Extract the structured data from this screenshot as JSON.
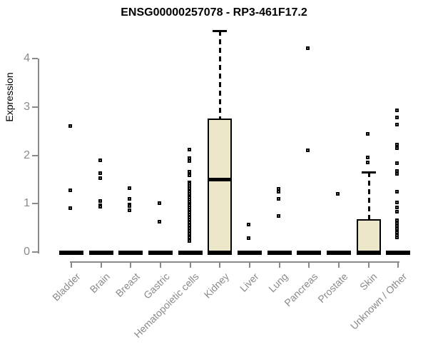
{
  "colors": {
    "box_fill": "#ece7c8",
    "mark": "#000000",
    "axis": "#8a8a8a",
    "axis_text": "#8a8a8a",
    "title_text": "#000000",
    "background": "#ffffff"
  },
  "chart_data": {
    "type": "boxplot",
    "title": "ENSG00000257078 - RP3-461F17.2",
    "xlabel": "",
    "ylabel": "Expression",
    "ylim": [
      0,
      4.65
    ],
    "yticks": [
      0,
      1,
      2,
      3,
      4
    ],
    "grid": false,
    "legend": false,
    "categories": [
      "Bladder",
      "Brain",
      "Breast",
      "Gastric",
      "Hematopoietic cells",
      "Kidney",
      "Liver",
      "Lung",
      "Pancreas",
      "Prostate",
      "Skin",
      "Unknown / Other"
    ],
    "series": [
      {
        "category": "Bladder",
        "whisker_low": 0,
        "q1": 0,
        "median": 0,
        "q3": 0,
        "whisker_high": 0,
        "outliers": [
          2.61,
          1.28,
          0.92
        ]
      },
      {
        "category": "Brain",
        "whisker_low": 0,
        "q1": 0,
        "median": 0,
        "q3": 0,
        "whisker_high": 0,
        "outliers": [
          1.9,
          1.64,
          1.53,
          1.06,
          0.98,
          0.95
        ]
      },
      {
        "category": "Breast",
        "whisker_low": 0,
        "q1": 0,
        "median": 0,
        "q3": 0,
        "whisker_high": 0,
        "outliers": [
          1.33,
          1.11,
          0.99,
          0.96,
          0.87
        ]
      },
      {
        "category": "Gastric",
        "whisker_low": 0,
        "q1": 0,
        "median": 0,
        "q3": 0,
        "whisker_high": 0,
        "outliers": [
          1.02,
          0.64
        ]
      },
      {
        "category": "Hematopoietic cells",
        "whisker_low": 0,
        "q1": 0,
        "median": 0,
        "q3": 0,
        "whisker_high": 0,
        "outliers": [
          2.13,
          1.95,
          1.89,
          1.67,
          1.59,
          1.45,
          1.41,
          1.37,
          1.33,
          1.29,
          1.25,
          1.21,
          1.17,
          1.13,
          1.09,
          1.05,
          1.01,
          0.97,
          0.93,
          0.88,
          0.83,
          0.78,
          0.73,
          0.68,
          0.62,
          0.56,
          0.5,
          0.44,
          0.38,
          0.31,
          0.24
        ]
      },
      {
        "category": "Kidney",
        "whisker_low": 0,
        "q1": 0,
        "median": 1.51,
        "q3": 2.76,
        "whisker_high": 4.57,
        "outliers": []
      },
      {
        "category": "Liver",
        "whisker_low": 0,
        "q1": 0,
        "median": 0,
        "q3": 0,
        "whisker_high": 0,
        "outliers": [
          0.58,
          0.3
        ]
      },
      {
        "category": "Lung",
        "whisker_low": 0,
        "q1": 0,
        "median": 0,
        "q3": 0,
        "whisker_high": 0,
        "outliers": [
          1.31,
          1.25,
          1.11,
          0.76
        ]
      },
      {
        "category": "Pancreas",
        "whisker_low": 0,
        "q1": 0,
        "median": 0,
        "q3": 0,
        "whisker_high": 0,
        "outliers": [
          4.22,
          2.11
        ]
      },
      {
        "category": "Prostate",
        "whisker_low": 0,
        "q1": 0,
        "median": 0,
        "q3": 0,
        "whisker_high": 0,
        "outliers": [
          1.21
        ]
      },
      {
        "category": "Skin",
        "whisker_low": 0,
        "q1": 0,
        "median": 0,
        "q3": 0.68,
        "whisker_high": 1.66,
        "outliers": [
          2.45,
          1.96,
          1.86
        ]
      },
      {
        "category": "Unknown / Other",
        "whisker_low": 0,
        "q1": 0,
        "median": 0,
        "q3": 0,
        "whisker_high": 0,
        "outliers": [
          2.93,
          2.79,
          2.64,
          2.23,
          2.16,
          1.84,
          1.69,
          1.62,
          1.26,
          1.03,
          0.93,
          0.84,
          0.66,
          0.6,
          0.54,
          0.48,
          0.42,
          0.36,
          0.31
        ]
      }
    ]
  }
}
